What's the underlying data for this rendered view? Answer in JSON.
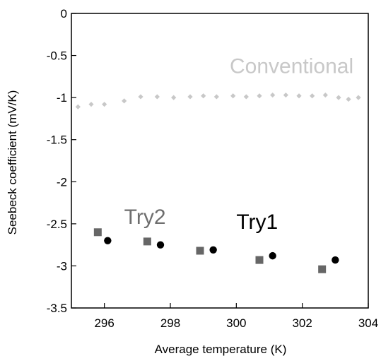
{
  "chart_data": {
    "type": "scatter",
    "xlabel": "Average temperature (K)",
    "ylabel": "Seebeck coefficient (mV/K)",
    "xlim": [
      295,
      304
    ],
    "ylim": [
      -3.5,
      0
    ],
    "xticks": [
      296,
      298,
      300,
      302,
      304
    ],
    "yticks": [
      0,
      -0.5,
      -1,
      -1.5,
      -2,
      -2.5,
      -3,
      -3.5
    ],
    "grid": false,
    "annotations": [
      {
        "text": "Conventional",
        "color": "#c8c8c8",
        "at_x": 299.8,
        "at_y": -0.71
      },
      {
        "text": "Try2",
        "color": "#6e6e6e",
        "at_x": 296.6,
        "at_y": -2.5
      },
      {
        "text": "Try1",
        "color": "#000000",
        "at_x": 300.0,
        "at_y": -2.56
      }
    ],
    "series": [
      {
        "marker": "diamond",
        "color": "#c8c8c8",
        "points": [
          [
            295.2,
            -1.11
          ],
          [
            295.6,
            -1.08
          ],
          [
            296.0,
            -1.08
          ],
          [
            296.6,
            -1.04
          ],
          [
            297.1,
            -0.99
          ],
          [
            297.6,
            -0.99
          ],
          [
            298.1,
            -1.0
          ],
          [
            298.6,
            -0.99
          ],
          [
            299.0,
            -0.98
          ],
          [
            299.4,
            -0.99
          ],
          [
            299.9,
            -0.98
          ],
          [
            300.3,
            -0.99
          ],
          [
            300.7,
            -0.98
          ],
          [
            301.1,
            -0.97
          ],
          [
            301.5,
            -0.97
          ],
          [
            301.9,
            -0.98
          ],
          [
            302.3,
            -0.98
          ],
          [
            302.7,
            -0.97
          ],
          [
            303.1,
            -1.0
          ],
          [
            303.4,
            -1.02
          ],
          [
            303.7,
            -1.0
          ]
        ]
      },
      {
        "name": "Try2",
        "marker": "square",
        "color": "#666666",
        "points": [
          [
            295.8,
            -2.6
          ],
          [
            297.3,
            -2.71
          ],
          [
            298.9,
            -2.82
          ],
          [
            300.7,
            -2.93
          ],
          [
            302.6,
            -3.04
          ]
        ]
      },
      {
        "name": "Try1",
        "marker": "circle",
        "color": "#000000",
        "points": [
          [
            296.1,
            -2.7
          ],
          [
            297.7,
            -2.75
          ],
          [
            299.3,
            -2.81
          ],
          [
            301.1,
            -2.88
          ],
          [
            303.0,
            -2.93
          ]
        ]
      }
    ]
  }
}
